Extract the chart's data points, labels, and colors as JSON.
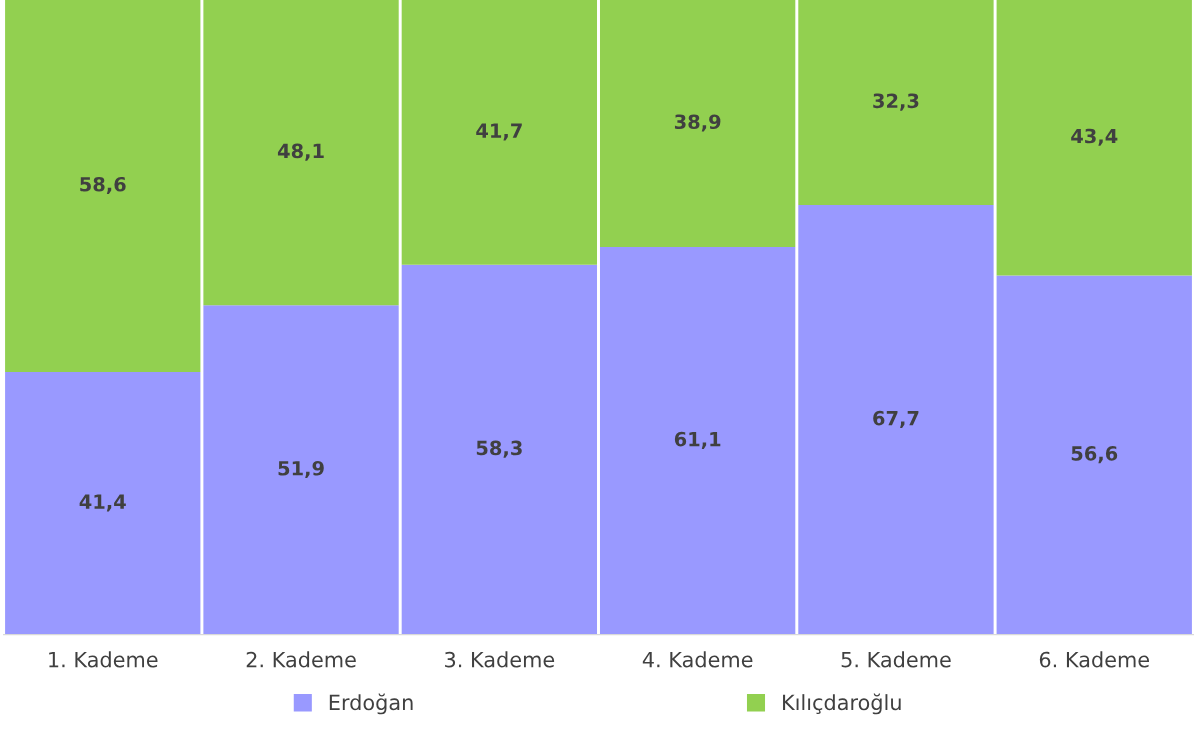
{
  "chart_data": {
    "type": "bar",
    "stacked": true,
    "categories": [
      "1. Kademe",
      "2. Kademe",
      "3. Kademe",
      "4. Kademe",
      "5. Kademe",
      "6. Kademe"
    ],
    "series": [
      {
        "name": "Erdoğan",
        "color": "#9999ff",
        "values": [
          41.4,
          51.9,
          58.3,
          61.1,
          67.7,
          56.6
        ],
        "value_labels": [
          "41,4",
          "51,9",
          "58,3",
          "61,1",
          "67,7",
          "56,6"
        ]
      },
      {
        "name": "Kılıçdaroğlu",
        "color": "#92d050",
        "values": [
          58.6,
          48.1,
          41.7,
          38.9,
          32.3,
          43.4
        ],
        "value_labels": [
          "58,6",
          "48,1",
          "41,7",
          "38,9",
          "32,3",
          "43,4"
        ]
      }
    ],
    "ylim": [
      0,
      100
    ],
    "tick_labels": "x",
    "grid": false,
    "legend": "bottom"
  }
}
